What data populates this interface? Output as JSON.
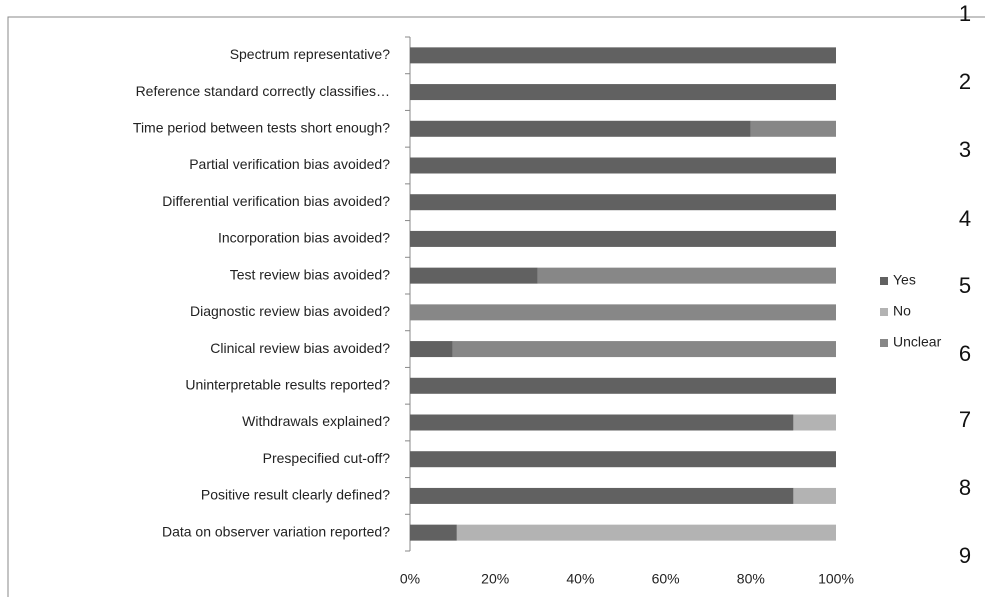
{
  "chart_data": {
    "type": "stacked_bar_horizontal",
    "categories": [
      "Spectrum representative?",
      "Reference standard correctly classifies…",
      "Time period between tests short enough?",
      "Partial verification bias avoided?",
      "Differential verification bias avoided?",
      "Incorporation bias avoided?",
      "Test review bias avoided?",
      "Diagnostic review bias avoided?",
      "Clinical review bias avoided?",
      "Uninterpretable results reported?",
      "Withdrawals explained?",
      "Prespecified cut-off?",
      "Positive result clearly defined?",
      "Data on observer variation reported?"
    ],
    "series": [
      {
        "name": "Yes",
        "color": "#616161",
        "values": [
          100,
          100,
          80,
          100,
          100,
          100,
          30,
          0,
          10,
          100,
          90,
          100,
          90,
          11
        ]
      },
      {
        "name": "No",
        "color": "#b3b3b3",
        "values": [
          0,
          0,
          0,
          0,
          0,
          0,
          0,
          0,
          0,
          0,
          10,
          0,
          10,
          89
        ]
      },
      {
        "name": "Unclear",
        "color": "#878787",
        "values": [
          0,
          0,
          20,
          0,
          0,
          0,
          70,
          100,
          90,
          0,
          0,
          0,
          0,
          0
        ]
      }
    ],
    "xlim": [
      0,
      100
    ],
    "xticks": [
      {
        "value": 0,
        "label": "0%"
      },
      {
        "value": 20,
        "label": "20%"
      },
      {
        "value": 40,
        "label": "40%"
      },
      {
        "value": 60,
        "label": "60%"
      },
      {
        "value": 80,
        "label": "80%"
      },
      {
        "value": 100,
        "label": "100%"
      }
    ],
    "grid": false,
    "legend": "right"
  },
  "margin_numbers": [
    1,
    2,
    3,
    4,
    5,
    6,
    7,
    8,
    9
  ]
}
